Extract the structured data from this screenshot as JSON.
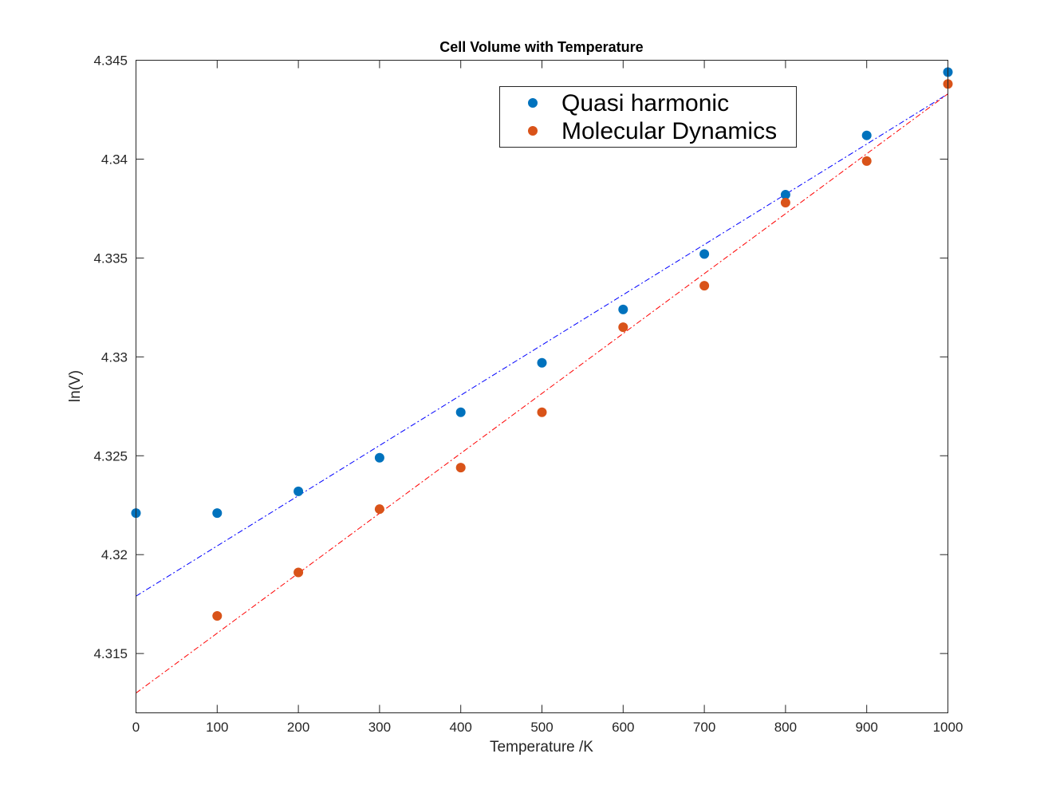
{
  "chart_data": {
    "type": "scatter",
    "title": "Cell Volume with Temperature",
    "xlabel": "Temperature /K",
    "ylabel": "ln(V)",
    "xlim": [
      0,
      1000
    ],
    "ylim": [
      4.312,
      4.345
    ],
    "xticks": [
      0,
      100,
      200,
      300,
      400,
      500,
      600,
      700,
      800,
      900,
      1000
    ],
    "xtick_labels": [
      "0",
      "100",
      "200",
      "300",
      "400",
      "500",
      "600",
      "700",
      "800",
      "900",
      "1000"
    ],
    "yticks": [
      4.315,
      4.32,
      4.325,
      4.33,
      4.335,
      4.34,
      4.345
    ],
    "ytick_labels": [
      "4.315",
      "4.32",
      "4.325",
      "4.33",
      "4.335",
      "4.34",
      "4.345"
    ],
    "grid": false,
    "legend": {
      "placement": "top-right",
      "entries": [
        "Quasi harmonic",
        "Molecular Dynamics"
      ]
    },
    "series": [
      {
        "name": "Quasi harmonic",
        "color": "#0072BD",
        "x": [
          0,
          100,
          200,
          300,
          400,
          500,
          600,
          700,
          800,
          900,
          1000
        ],
        "y": [
          4.3221,
          4.3221,
          4.3232,
          4.3249,
          4.3272,
          4.3297,
          4.3324,
          4.3352,
          4.3382,
          4.3412,
          4.3444
        ]
      },
      {
        "name": "Molecular Dynamics",
        "color": "#D95319",
        "x": [
          100,
          200,
          300,
          400,
          500,
          600,
          700,
          800,
          900,
          1000
        ],
        "y": [
          4.3169,
          4.3191,
          4.3223,
          4.3244,
          4.3272,
          4.3315,
          4.3336,
          4.3378,
          4.3399,
          4.3438
        ]
      }
    ],
    "fit_lines": [
      {
        "series": "Quasi harmonic",
        "color": "#0000FF",
        "style": "dash-dot",
        "x": [
          0,
          1000
        ],
        "y": [
          4.3179,
          4.3433
        ]
      },
      {
        "series": "Molecular Dynamics",
        "color": "#FF0000",
        "style": "dash-dot",
        "x": [
          0,
          1000
        ],
        "y": [
          4.313,
          4.3433
        ]
      }
    ]
  }
}
